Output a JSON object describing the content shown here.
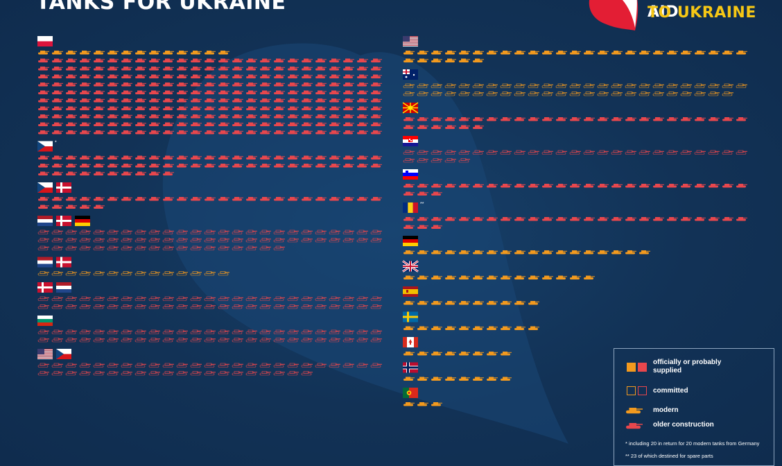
{
  "header": {
    "title": "TANKS FOR UKRAINE"
  },
  "brand": {
    "line1": "POLAND'S AID",
    "line2": "TO UKRAINE"
  },
  "colors": {
    "background": "#123256",
    "modern_supplied": "#f39a1e",
    "older_supplied": "#e8474d",
    "committed_outline": "#f39a1e",
    "brand_red": "#e31e34",
    "brand_yellow": "#f6c715"
  },
  "legend": {
    "supplied_label": "officially or probably supplied",
    "committed_label": "committed",
    "modern_label": "modern",
    "older_label": "older construction",
    "note1": "*  including 20 in return for 20 modern tanks from Germany",
    "note2": "** 23 of which destined for spare parts"
  },
  "chart_data": {
    "type": "pictogram",
    "title": "TANKS FOR UKRAINE",
    "unit": "1 icon = 1 tank",
    "groups": [
      {
        "flags": [
          "poland"
        ],
        "footnote": "",
        "modern_supplied": 14,
        "modern_committed": 0,
        "older_supplied": 250,
        "older_committed": 0
      },
      {
        "flags": [
          "czech-republic"
        ],
        "footnote": "*",
        "modern_supplied": 0,
        "modern_committed": 0,
        "older_supplied": 60,
        "older_committed": 0
      },
      {
        "flags": [
          "czech-republic",
          "denmark"
        ],
        "footnote": "",
        "modern_supplied": 0,
        "modern_committed": 0,
        "older_supplied": 30,
        "older_committed": 0
      },
      {
        "flags": [
          "netherlands",
          "denmark",
          "germany"
        ],
        "footnote": "",
        "modern_supplied": 0,
        "modern_committed": 0,
        "older_supplied": 0,
        "older_committed": 68
      },
      {
        "flags": [
          "netherlands",
          "denmark"
        ],
        "footnote": "",
        "modern_supplied": 0,
        "modern_committed": 14,
        "older_supplied": 0,
        "older_committed": 0
      },
      {
        "flags": [
          "denmark",
          "netherlands"
        ],
        "footnote": "",
        "modern_supplied": 0,
        "modern_committed": 0,
        "older_supplied": 0,
        "older_committed": 50
      },
      {
        "flags": [
          "bulgaria"
        ],
        "footnote": "",
        "modern_supplied": 0,
        "modern_committed": 0,
        "older_supplied": 0,
        "older_committed": 50
      },
      {
        "flags": [
          "usa",
          "czech-republic"
        ],
        "footnote": "",
        "modern_supplied": 0,
        "modern_committed": 0,
        "older_supplied": 0,
        "older_committed": 45
      },
      {
        "flags": [
          "usa"
        ],
        "footnote": "",
        "modern_supplied": 31,
        "modern_committed": 0,
        "older_supplied": 0,
        "older_committed": 0
      },
      {
        "flags": [
          "australia"
        ],
        "footnote": "",
        "modern_supplied": 0,
        "modern_committed": 49,
        "older_supplied": 0,
        "older_committed": 0
      },
      {
        "flags": [
          "north-macedonia"
        ],
        "footnote": "",
        "modern_supplied": 0,
        "modern_committed": 0,
        "older_supplied": 31,
        "older_committed": 0
      },
      {
        "flags": [
          "croatia"
        ],
        "footnote": "",
        "modern_supplied": 0,
        "modern_committed": 0,
        "older_supplied": 0,
        "older_committed": 30
      },
      {
        "flags": [
          "slovenia"
        ],
        "footnote": "",
        "modern_supplied": 0,
        "modern_committed": 0,
        "older_supplied": 28,
        "older_committed": 0
      },
      {
        "flags": [
          "romania"
        ],
        "footnote": "**",
        "modern_supplied": 0,
        "modern_committed": 0,
        "older_supplied": 28,
        "older_committed": 0
      },
      {
        "flags": [
          "germany"
        ],
        "footnote": "",
        "modern_supplied": 18,
        "modern_committed": 0,
        "older_supplied": 0,
        "older_committed": 0
      },
      {
        "flags": [
          "uk"
        ],
        "footnote": "",
        "modern_supplied": 14,
        "modern_committed": 0,
        "older_supplied": 0,
        "older_committed": 0
      },
      {
        "flags": [
          "spain"
        ],
        "footnote": "",
        "modern_supplied": 10,
        "modern_committed": 0,
        "older_supplied": 0,
        "older_committed": 0
      },
      {
        "flags": [
          "sweden"
        ],
        "footnote": "",
        "modern_supplied": 10,
        "modern_committed": 0,
        "older_supplied": 0,
        "older_committed": 0
      },
      {
        "flags": [
          "canada"
        ],
        "footnote": "",
        "modern_supplied": 8,
        "modern_committed": 0,
        "older_supplied": 0,
        "older_committed": 0
      },
      {
        "flags": [
          "norway"
        ],
        "footnote": "",
        "modern_supplied": 8,
        "modern_committed": 0,
        "older_supplied": 0,
        "older_committed": 0
      },
      {
        "flags": [
          "portugal"
        ],
        "footnote": "",
        "modern_supplied": 3,
        "modern_committed": 0,
        "older_supplied": 0,
        "older_committed": 0
      }
    ]
  }
}
